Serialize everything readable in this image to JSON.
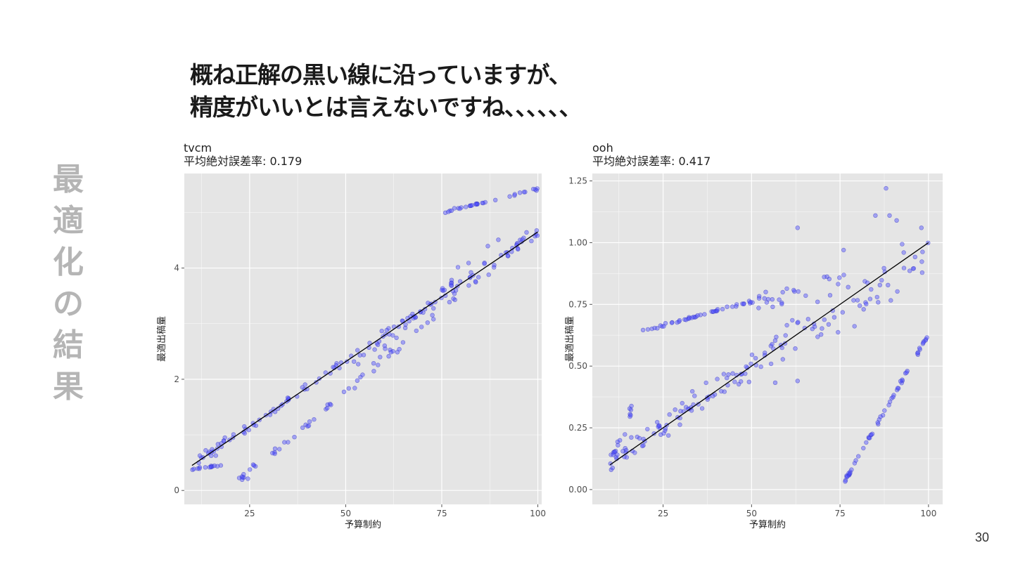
{
  "headline": {
    "line1": "概ね正解の黒い線に沿っていますが、",
    "line2": "精度がいいとは言えないですね、、、、、、"
  },
  "side_title": [
    "最",
    "適",
    "化",
    "の",
    "結",
    "果"
  ],
  "page_number": "30",
  "colors": {
    "panel_bg": "#e5e5e5",
    "grid": "#ffffff",
    "point": "#4d4dff",
    "point_stroke": "#3030c0",
    "line": "#000000",
    "side_title": "#b5b5b5"
  },
  "chart_data": [
    {
      "type": "scatter",
      "title": "tvcm",
      "subtitle": "平均絶対誤差率: 0.179",
      "xlabel": "予算制約",
      "ylabel": "最適出稿量",
      "xlim": [
        8,
        101
      ],
      "ylim": [
        -0.25,
        5.7
      ],
      "xticks": [
        25,
        50,
        75,
        100
      ],
      "yticks": [
        0,
        2,
        4
      ],
      "grid": true,
      "reference_line": [
        [
          10,
          0.45
        ],
        [
          100,
          4.65
        ]
      ],
      "point_groups": [
        {
          "x0": 10,
          "y0": 0.45,
          "x1": 100,
          "y1": 4.65,
          "n": 110,
          "noise": 0.12,
          "seed": 11
        },
        {
          "x0": 20,
          "y0": 0.05,
          "x1": 100,
          "y1": 4.7,
          "n": 75,
          "noise": 0.12,
          "seed": 23
        },
        {
          "x0": 75,
          "y0": 5.0,
          "x1": 100,
          "y1": 5.42,
          "n": 32,
          "noise": 0.03,
          "seed": 37
        },
        {
          "x0": 10,
          "y0": 0.38,
          "x1": 18,
          "y1": 0.45,
          "n": 14,
          "noise": 0.02,
          "seed": 41
        },
        {
          "x0": 50,
          "y0": 2.2,
          "x1": 90,
          "y1": 4.5,
          "n": 30,
          "noise": 0.3,
          "seed": 53
        }
      ]
    },
    {
      "type": "scatter",
      "title": "ooh",
      "subtitle": "平均絶対誤差率: 0.417",
      "xlabel": "予算制約",
      "ylabel": "最適出稿量",
      "xlim": [
        5,
        104
      ],
      "ylim": [
        -0.06,
        1.28
      ],
      "xticks": [
        25,
        50,
        75,
        100
      ],
      "yticks": [
        0.0,
        0.25,
        0.5,
        0.75,
        1.0,
        1.25
      ],
      "ytick_labels": [
        "0.00",
        "0.25",
        "0.50",
        "0.75",
        "1.00",
        "1.25"
      ],
      "grid": true,
      "reference_line": [
        [
          10,
          0.1
        ],
        [
          100,
          1.0
        ]
      ],
      "point_groups": [
        {
          "x0": 19,
          "y0": 0.64,
          "x1": 52,
          "y1": 0.77,
          "n": 45,
          "noise": 0.008,
          "seed": 61
        },
        {
          "x0": 52,
          "y0": 0.77,
          "x1": 78,
          "y1": 0.87,
          "n": 25,
          "noise": 0.06,
          "seed": 67
        },
        {
          "x0": 75,
          "y0": 0.0,
          "x1": 100,
          "y1": 0.63,
          "n": 55,
          "noise": 0.01,
          "seed": 71
        },
        {
          "x0": 10,
          "y0": 0.12,
          "x1": 60,
          "y1": 0.6,
          "n": 90,
          "noise": 0.07,
          "seed": 79
        },
        {
          "x0": 10,
          "y0": 0.1,
          "x1": 18,
          "y1": 0.38,
          "n": 18,
          "noise": 0.04,
          "seed": 83
        },
        {
          "x0": 55,
          "y0": 0.5,
          "x1": 100,
          "y1": 1.0,
          "n": 55,
          "noise": 0.14,
          "seed": 89
        }
      ],
      "points": [
        [
          88,
          1.22
        ],
        [
          63,
          1.06
        ],
        [
          85,
          1.11
        ],
        [
          89,
          1.11
        ],
        [
          98,
          1.06
        ],
        [
          91,
          1.09
        ],
        [
          63,
          0.44
        ],
        [
          76,
          0.97
        ]
      ]
    }
  ]
}
